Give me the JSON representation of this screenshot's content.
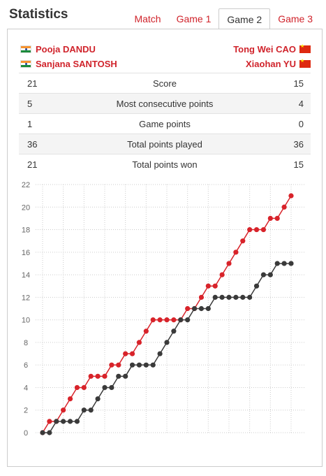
{
  "header": {
    "title": "Statistics",
    "tabs": [
      {
        "label": "Match",
        "active": false
      },
      {
        "label": "Game 1",
        "active": false
      },
      {
        "label": "Game 2",
        "active": true
      },
      {
        "label": "Game 3",
        "active": false
      }
    ]
  },
  "players": {
    "left": [
      "Pooja DANDU",
      "Sanjana SANTOSH"
    ],
    "right": [
      "Tong Wei CAO",
      "Xiaohan YU"
    ]
  },
  "stats": [
    {
      "left": "21",
      "label": "Score",
      "right": "15"
    },
    {
      "left": "5",
      "label": "Most consecutive points",
      "right": "4"
    },
    {
      "left": "1",
      "label": "Game points",
      "right": "0"
    },
    {
      "left": "36",
      "label": "Total points played",
      "right": "36"
    },
    {
      "left": "21",
      "label": "Total points won",
      "right": "15"
    }
  ],
  "colors": {
    "accent": "#d0232b",
    "red_series": "#d8232a",
    "dark_series": "#3a3a3a"
  },
  "chart_data": {
    "type": "line",
    "x": [
      0,
      1,
      2,
      3,
      4,
      5,
      6,
      7,
      8,
      9,
      10,
      11,
      12,
      13,
      14,
      15,
      16,
      17,
      18,
      19,
      20,
      21,
      22,
      23,
      24,
      25,
      26,
      27,
      28,
      29,
      30,
      31,
      32,
      33,
      34,
      35,
      36
    ],
    "ylim": [
      0,
      22
    ],
    "yticks": [
      0,
      2,
      4,
      6,
      8,
      10,
      12,
      14,
      16,
      18,
      20,
      22
    ],
    "grid": true,
    "series": [
      {
        "color": "#d8232a",
        "values": [
          0,
          1,
          1,
          2,
          3,
          4,
          4,
          5,
          5,
          5,
          6,
          6,
          7,
          7,
          8,
          9,
          10,
          10,
          10,
          10,
          10,
          11,
          11,
          12,
          13,
          13,
          14,
          15,
          16,
          17,
          18,
          18,
          18,
          19,
          19,
          20,
          21
        ]
      },
      {
        "color": "#3a3a3a",
        "values": [
          0,
          0,
          1,
          1,
          1,
          1,
          2,
          2,
          3,
          4,
          4,
          5,
          5,
          6,
          6,
          6,
          6,
          7,
          8,
          9,
          10,
          10,
          11,
          11,
          11,
          12,
          12,
          12,
          12,
          12,
          12,
          13,
          14,
          14,
          15,
          15,
          15
        ]
      }
    ]
  }
}
